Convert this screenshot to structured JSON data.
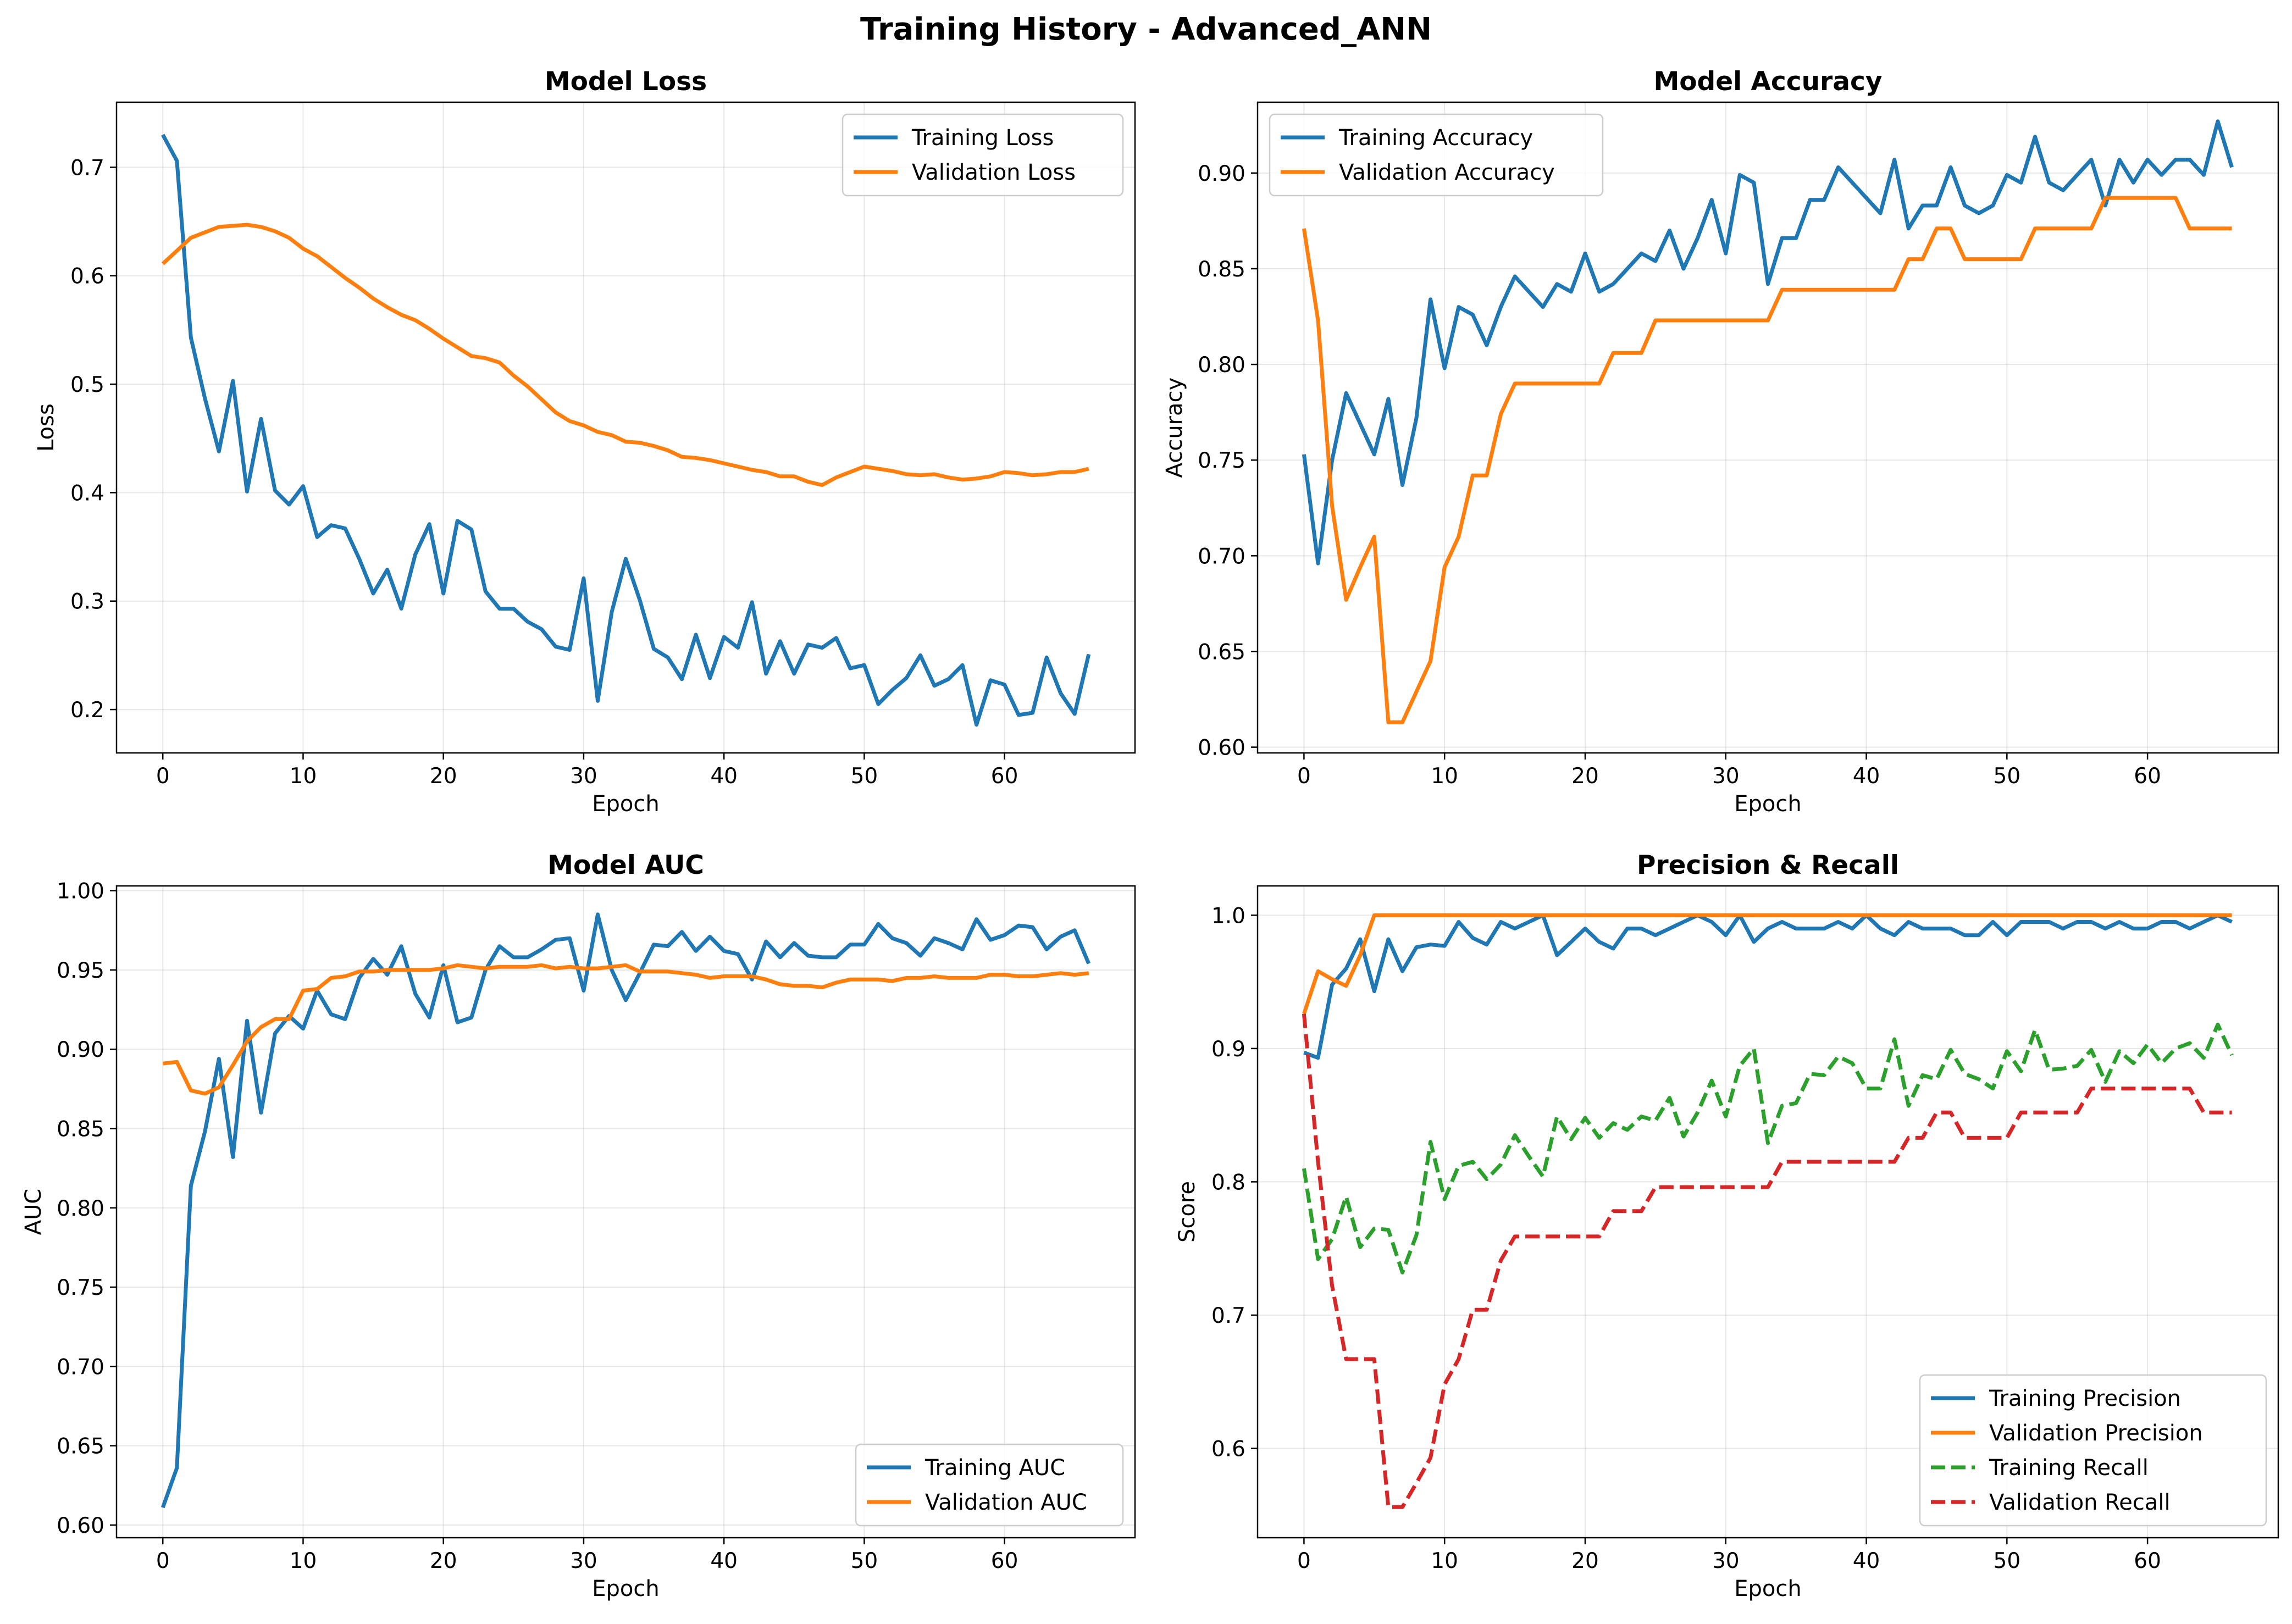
{
  "suptitle": "Training History - Advanced_ANN",
  "chart_data": [
    {
      "type": "line",
      "title": "Model Loss",
      "xlabel": "Epoch",
      "ylabel": "Loss",
      "xlim": [
        -3.3,
        69.3
      ],
      "ylim": [
        0.16,
        0.76
      ],
      "xticks": [
        0,
        10,
        20,
        30,
        40,
        50,
        60
      ],
      "yticks": [
        0.2,
        0.3,
        0.4,
        0.5,
        0.6,
        0.7
      ],
      "yfmt": 1,
      "grid": true,
      "legend": "top-right",
      "series": [
        {
          "name": "Training Loss",
          "color": "#1f77b4",
          "dash": "solid",
          "values": [
            0.73,
            0.706,
            0.543,
            0.487,
            0.438,
            0.503,
            0.401,
            0.468,
            0.402,
            0.389,
            0.406,
            0.359,
            0.37,
            0.367,
            0.339,
            0.307,
            0.329,
            0.293,
            0.343,
            0.371,
            0.307,
            0.374,
            0.366,
            0.309,
            0.293,
            0.293,
            0.281,
            0.274,
            0.258,
            0.255,
            0.321,
            0.208,
            0.29,
            0.339,
            0.301,
            0.256,
            0.248,
            0.228,
            0.269,
            0.229,
            0.267,
            0.257,
            0.299,
            0.233,
            0.263,
            0.233,
            0.26,
            0.257,
            0.266,
            0.238,
            0.241,
            0.205,
            0.218,
            0.229,
            0.25,
            0.222,
            0.228,
            0.241,
            0.186,
            0.227,
            0.223,
            0.195,
            0.197,
            0.248,
            0.215,
            0.196,
            0.251
          ]
        },
        {
          "name": "Validation Loss",
          "color": "#ff7f0e",
          "dash": "solid",
          "values": [
            0.611,
            0.623,
            0.635,
            0.64,
            0.645,
            0.646,
            0.647,
            0.645,
            0.641,
            0.635,
            0.625,
            0.618,
            0.608,
            0.598,
            0.589,
            0.579,
            0.571,
            0.564,
            0.559,
            0.551,
            0.542,
            0.534,
            0.526,
            0.524,
            0.52,
            0.508,
            0.498,
            0.486,
            0.474,
            0.466,
            0.462,
            0.456,
            0.453,
            0.447,
            0.446,
            0.443,
            0.439,
            0.433,
            0.432,
            0.43,
            0.427,
            0.424,
            0.421,
            0.419,
            0.415,
            0.415,
            0.41,
            0.407,
            0.414,
            0.419,
            0.424,
            0.422,
            0.42,
            0.417,
            0.416,
            0.417,
            0.414,
            0.412,
            0.413,
            0.415,
            0.419,
            0.418,
            0.416,
            0.417,
            0.419,
            0.419,
            0.422
          ]
        }
      ]
    },
    {
      "type": "line",
      "title": "Model Accuracy",
      "xlabel": "Epoch",
      "ylabel": "Accuracy",
      "xlim": [
        -3.3,
        69.3
      ],
      "ylim": [
        0.597,
        0.937
      ],
      "xticks": [
        0,
        10,
        20,
        30,
        40,
        50,
        60
      ],
      "yticks": [
        0.6,
        0.65,
        0.7,
        0.75,
        0.8,
        0.85,
        0.9
      ],
      "yfmt": 2,
      "grid": true,
      "legend": "top-left",
      "series": [
        {
          "name": "Training Accuracy",
          "color": "#1f77b4",
          "dash": "solid",
          "values": [
            0.753,
            0.696,
            0.75,
            0.785,
            0.769,
            0.753,
            0.782,
            0.737,
            0.772,
            0.834,
            0.798,
            0.83,
            0.826,
            0.81,
            0.83,
            0.846,
            0.838,
            0.83,
            0.842,
            0.838,
            0.858,
            0.838,
            0.842,
            0.85,
            0.858,
            0.854,
            0.87,
            0.85,
            0.866,
            0.886,
            0.858,
            0.899,
            0.895,
            0.842,
            0.866,
            0.866,
            0.886,
            0.886,
            0.903,
            0.895,
            0.887,
            0.879,
            0.907,
            0.871,
            0.883,
            0.883,
            0.903,
            0.883,
            0.879,
            0.883,
            0.899,
            0.895,
            0.919,
            0.895,
            0.891,
            0.899,
            0.907,
            0.883,
            0.907,
            0.895,
            0.907,
            0.899,
            0.907,
            0.907,
            0.899,
            0.927,
            0.903
          ]
        },
        {
          "name": "Validation Accuracy",
          "color": "#ff7f0e",
          "dash": "solid",
          "values": [
            0.871,
            0.823,
            0.726,
            0.677,
            0.694,
            0.71,
            0.613,
            0.613,
            0.629,
            0.645,
            0.694,
            0.71,
            0.742,
            0.742,
            0.774,
            0.79,
            0.79,
            0.79,
            0.79,
            0.79,
            0.79,
            0.79,
            0.806,
            0.806,
            0.806,
            0.823,
            0.823,
            0.823,
            0.823,
            0.823,
            0.823,
            0.823,
            0.823,
            0.823,
            0.839,
            0.839,
            0.839,
            0.839,
            0.839,
            0.839,
            0.839,
            0.839,
            0.839,
            0.855,
            0.855,
            0.871,
            0.871,
            0.855,
            0.855,
            0.855,
            0.855,
            0.855,
            0.871,
            0.871,
            0.871,
            0.871,
            0.871,
            0.887,
            0.887,
            0.887,
            0.887,
            0.887,
            0.887,
            0.871,
            0.871,
            0.871,
            0.871
          ]
        }
      ]
    },
    {
      "type": "line",
      "title": "Model AUC",
      "xlabel": "Epoch",
      "ylabel": "AUC",
      "xlim": [
        -3.3,
        69.3
      ],
      "ylim": [
        0.592,
        1.003
      ],
      "xticks": [
        0,
        10,
        20,
        30,
        40,
        50,
        60
      ],
      "yticks": [
        0.6,
        0.65,
        0.7,
        0.75,
        0.8,
        0.85,
        0.9,
        0.95,
        1.0
      ],
      "yfmt": 2,
      "grid": true,
      "legend": "bottom-right",
      "series": [
        {
          "name": "Training AUC",
          "color": "#1f77b4",
          "dash": "solid",
          "values": [
            0.611,
            0.636,
            0.814,
            0.848,
            0.894,
            0.832,
            0.918,
            0.86,
            0.91,
            0.921,
            0.913,
            0.937,
            0.922,
            0.919,
            0.945,
            0.957,
            0.947,
            0.965,
            0.935,
            0.92,
            0.953,
            0.917,
            0.92,
            0.95,
            0.965,
            0.958,
            0.958,
            0.963,
            0.969,
            0.97,
            0.937,
            0.985,
            0.95,
            0.931,
            0.948,
            0.966,
            0.965,
            0.974,
            0.962,
            0.971,
            0.962,
            0.96,
            0.944,
            0.968,
            0.958,
            0.967,
            0.959,
            0.958,
            0.958,
            0.966,
            0.966,
            0.979,
            0.97,
            0.967,
            0.959,
            0.97,
            0.967,
            0.963,
            0.982,
            0.969,
            0.972,
            0.978,
            0.977,
            0.963,
            0.971,
            0.975,
            0.954
          ]
        },
        {
          "name": "Validation AUC",
          "color": "#ff7f0e",
          "dash": "solid",
          "values": [
            0.891,
            0.892,
            0.874,
            0.872,
            0.876,
            0.89,
            0.905,
            0.914,
            0.919,
            0.919,
            0.937,
            0.938,
            0.945,
            0.946,
            0.949,
            0.949,
            0.95,
            0.95,
            0.95,
            0.95,
            0.951,
            0.953,
            0.952,
            0.951,
            0.952,
            0.952,
            0.952,
            0.953,
            0.951,
            0.952,
            0.951,
            0.951,
            0.952,
            0.953,
            0.949,
            0.949,
            0.949,
            0.948,
            0.947,
            0.945,
            0.946,
            0.946,
            0.946,
            0.944,
            0.941,
            0.94,
            0.94,
            0.939,
            0.942,
            0.944,
            0.944,
            0.944,
            0.943,
            0.945,
            0.945,
            0.946,
            0.945,
            0.945,
            0.945,
            0.947,
            0.947,
            0.946,
            0.946,
            0.947,
            0.948,
            0.947,
            0.948
          ]
        }
      ]
    },
    {
      "type": "line",
      "title": "Precision & Recall",
      "xlabel": "Epoch",
      "ylabel": "Score",
      "xlim": [
        -3.3,
        69.3
      ],
      "ylim": [
        0.533,
        1.022
      ],
      "xticks": [
        0,
        10,
        20,
        30,
        40,
        50,
        60
      ],
      "yticks": [
        0.6,
        0.7,
        0.8,
        0.9,
        1.0
      ],
      "yfmt": 1,
      "grid": true,
      "legend": "bottom-right",
      "series": [
        {
          "name": "Training Precision",
          "color": "#1f77b4",
          "dash": "solid",
          "values": [
            0.897,
            0.893,
            0.948,
            0.96,
            0.982,
            0.943,
            0.982,
            0.958,
            0.976,
            0.978,
            0.977,
            0.995,
            0.983,
            0.978,
            0.995,
            0.99,
            0.995,
            1.0,
            0.97,
            0.98,
            0.99,
            0.98,
            0.975,
            0.99,
            0.99,
            0.985,
            0.99,
            0.995,
            1.0,
            0.995,
            0.985,
            1.0,
            0.98,
            0.99,
            0.995,
            0.99,
            0.99,
            0.99,
            0.995,
            0.99,
            1.0,
            0.99,
            0.985,
            0.995,
            0.99,
            0.99,
            0.99,
            0.985,
            0.985,
            0.995,
            0.985,
            0.995,
            0.995,
            0.995,
            0.99,
            0.995,
            0.995,
            0.99,
            0.995,
            0.99,
            0.99,
            0.995,
            0.995,
            0.99,
            0.995,
            1.0,
            0.995
          ]
        },
        {
          "name": "Validation Precision",
          "color": "#ff7f0e",
          "dash": "solid",
          "values": [
            0.926,
            0.958,
            0.952,
            0.947,
            0.97,
            1.0,
            1.0,
            1.0,
            1.0,
            1.0,
            1.0,
            1.0,
            1.0,
            1.0,
            1.0,
            1.0,
            1.0,
            1.0,
            1.0,
            1.0,
            1.0,
            1.0,
            1.0,
            1.0,
            1.0,
            1.0,
            1.0,
            1.0,
            1.0,
            1.0,
            1.0,
            1.0,
            1.0,
            1.0,
            1.0,
            1.0,
            1.0,
            1.0,
            1.0,
            1.0,
            1.0,
            1.0,
            1.0,
            1.0,
            1.0,
            1.0,
            1.0,
            1.0,
            1.0,
            1.0,
            1.0,
            1.0,
            1.0,
            1.0,
            1.0,
            1.0,
            1.0,
            1.0,
            1.0,
            1.0,
            1.0,
            1.0,
            1.0,
            1.0,
            1.0,
            1.0,
            1.0
          ]
        },
        {
          "name": "Training Recall",
          "color": "#2ca02c",
          "dash": "dashed",
          "values": [
            0.81,
            0.742,
            0.757,
            0.789,
            0.751,
            0.765,
            0.764,
            0.732,
            0.76,
            0.83,
            0.787,
            0.812,
            0.815,
            0.802,
            0.813,
            0.835,
            0.819,
            0.804,
            0.849,
            0.832,
            0.848,
            0.833,
            0.844,
            0.839,
            0.849,
            0.846,
            0.863,
            0.834,
            0.852,
            0.876,
            0.849,
            0.887,
            0.9,
            0.829,
            0.857,
            0.859,
            0.881,
            0.88,
            0.894,
            0.889,
            0.87,
            0.87,
            0.907,
            0.857,
            0.88,
            0.877,
            0.899,
            0.881,
            0.877,
            0.87,
            0.898,
            0.883,
            0.914,
            0.884,
            0.885,
            0.887,
            0.899,
            0.875,
            0.898,
            0.889,
            0.903,
            0.889,
            0.9,
            0.904,
            0.893,
            0.918,
            0.895
          ]
        },
        {
          "name": "Validation Recall",
          "color": "#d62728",
          "dash": "dashed",
          "values": [
            0.926,
            0.815,
            0.722,
            0.667,
            0.667,
            0.667,
            0.556,
            0.556,
            0.574,
            0.593,
            0.648,
            0.667,
            0.704,
            0.704,
            0.741,
            0.759,
            0.759,
            0.759,
            0.759,
            0.759,
            0.759,
            0.759,
            0.778,
            0.778,
            0.778,
            0.796,
            0.796,
            0.796,
            0.796,
            0.796,
            0.796,
            0.796,
            0.796,
            0.796,
            0.815,
            0.815,
            0.815,
            0.815,
            0.815,
            0.815,
            0.815,
            0.815,
            0.815,
            0.833,
            0.833,
            0.852,
            0.852,
            0.833,
            0.833,
            0.833,
            0.833,
            0.852,
            0.852,
            0.852,
            0.852,
            0.852,
            0.87,
            0.87,
            0.87,
            0.87,
            0.87,
            0.87,
            0.87,
            0.87,
            0.852,
            0.852,
            0.852
          ]
        }
      ]
    }
  ]
}
